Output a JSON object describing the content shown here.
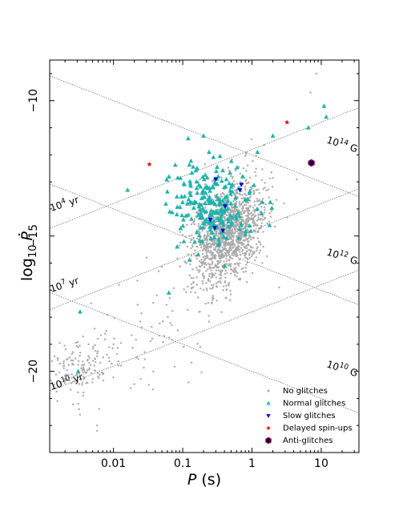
{
  "chart_data": {
    "type": "scatter",
    "xlabel_var": "P",
    "xlabel_unit": " (s)",
    "ylabel_prefix": "log",
    "ylabel_sub": "10",
    "ylabel_var": "Ṗ",
    "x_scale": "log",
    "xlim": [
      0.0012,
      35
    ],
    "ylim": [
      -23.0,
      -8.5
    ],
    "x_ticks": [
      {
        "value": 0.01,
        "label": "0.01"
      },
      {
        "value": 0.1,
        "label": "0.1"
      },
      {
        "value": 1,
        "label": "1"
      },
      {
        "value": 10,
        "label": "10"
      }
    ],
    "y_ticks": [
      {
        "value": -10,
        "label": "−10"
      },
      {
        "value": -15,
        "label": "−15"
      },
      {
        "value": -20,
        "label": "−20"
      }
    ],
    "grid": false,
    "legend_position": "lower right",
    "reference_lines": [
      {
        "kind": "magnetic_field",
        "label_base": "10",
        "label_exp": "14",
        "label_unit": " G",
        "intercept_at_1s": -12.0
      },
      {
        "kind": "magnetic_field",
        "label_base": "10",
        "label_exp": "12",
        "label_unit": " G",
        "intercept_at_1s": -16.0
      },
      {
        "kind": "magnetic_field",
        "label_base": "10",
        "label_exp": "10",
        "label_unit": " G",
        "intercept_at_1s": -20.0
      },
      {
        "kind": "characteristic_age",
        "label_base": "10",
        "label_exp": "4",
        "label_unit": " yr",
        "intercept_at_1s": -11.8
      },
      {
        "kind": "characteristic_age",
        "label_base": "10",
        "label_exp": "7",
        "label_unit": " yr",
        "intercept_at_1s": -14.8
      },
      {
        "kind": "characteristic_age",
        "label_base": "10",
        "label_exp": "10",
        "label_unit": " yr",
        "intercept_at_1s": -17.8
      }
    ],
    "series": [
      {
        "name": "No glitches",
        "marker": "dot",
        "color": "#aaaaaa",
        "clusters": [
          {
            "count": 1450,
            "log_p_mean": -0.35,
            "log_p_sd": 0.26,
            "ydot_mean": -14.9,
            "ydot_sd": 0.95,
            "corr": 0.35
          },
          {
            "count": 140,
            "log_p_mean": -2.45,
            "log_p_sd": 0.22,
            "ydot_mean": -19.95,
            "ydot_sd": 0.55,
            "corr": 0.3
          },
          {
            "count": 70,
            "log_p_mean": -1.5,
            "log_p_sd": 0.5,
            "ydot_mean": -18.7,
            "ydot_sd": 0.9,
            "corr": 0.2
          }
        ],
        "points": [
          {
            "p": 0.0058,
            "ydot": -22.0
          },
          {
            "p": 0.0058,
            "ydot": -22.2
          },
          {
            "p": 0.0031,
            "ydot": -21.2
          },
          {
            "p": 0.0033,
            "ydot": -21.6
          },
          {
            "p": 0.0032,
            "ydot": -21.4
          },
          {
            "p": 8.5,
            "ydot": -9.0
          },
          {
            "p": 7.0,
            "ydot": -9.7
          },
          {
            "p": 11.0,
            "ydot": -10.2
          },
          {
            "p": 0.012,
            "ydot": -16.8
          },
          {
            "p": 0.03,
            "ydot": -15.8
          },
          {
            "p": 0.045,
            "ydot": -16.3
          },
          {
            "p": 0.065,
            "ydot": -17.3
          }
        ]
      },
      {
        "name": "Normal glitches",
        "marker": "triangle-up",
        "color": "#20b2aa",
        "clusters": [
          {
            "count": 230,
            "log_p_mean": -0.55,
            "log_p_sd": 0.3,
            "ydot_mean": -13.9,
            "ydot_sd": 0.8,
            "corr": 0.1
          }
        ],
        "points": [
          {
            "p": 0.016,
            "ydot": -13.3
          },
          {
            "p": 0.0033,
            "ydot": -17.8
          },
          {
            "p": 0.0031,
            "ydot": -20.0
          },
          {
            "p": 0.063,
            "ydot": -17.1
          },
          {
            "p": 0.4,
            "ydot": -16.1
          },
          {
            "p": 11.8,
            "ydot": -10.6
          },
          {
            "p": 11.0,
            "ydot": -10.2
          },
          {
            "p": 6.5,
            "ydot": -11.0
          },
          {
            "p": 2.0,
            "ydot": -11.3
          },
          {
            "p": 1.2,
            "ydot": -11.9
          },
          {
            "p": 0.12,
            "ydot": -11.4
          },
          {
            "p": 0.2,
            "ydot": -11.3
          },
          {
            "p": 0.24,
            "ydot": -11.9
          }
        ]
      },
      {
        "name": "Slow glitches",
        "marker": "triangle-down",
        "color": "#0000cc",
        "points": [
          {
            "p": 0.3,
            "ydot": -12.9
          },
          {
            "p": 0.41,
            "ydot": -13.9
          },
          {
            "p": 0.25,
            "ydot": -14.4
          },
          {
            "p": 0.29,
            "ydot": -14.7
          },
          {
            "p": 0.38,
            "ydot": -14.8
          },
          {
            "p": 0.67,
            "ydot": -13.3
          },
          {
            "p": 0.7,
            "ydot": -13.1
          }
        ]
      },
      {
        "name": "Delayed spin-ups",
        "marker": "star",
        "color": "#e00000",
        "points": [
          {
            "p": 0.033,
            "ydot": -12.35
          },
          {
            "p": 3.2,
            "ydot": -10.8
          },
          {
            "p": 7.0,
            "ydot": -12.3
          }
        ]
      },
      {
        "name": "Anti-glitches",
        "marker": "hexagon",
        "color": "#000066",
        "points": [
          {
            "p": 7.2,
            "ydot": -12.3
          }
        ]
      }
    ]
  }
}
